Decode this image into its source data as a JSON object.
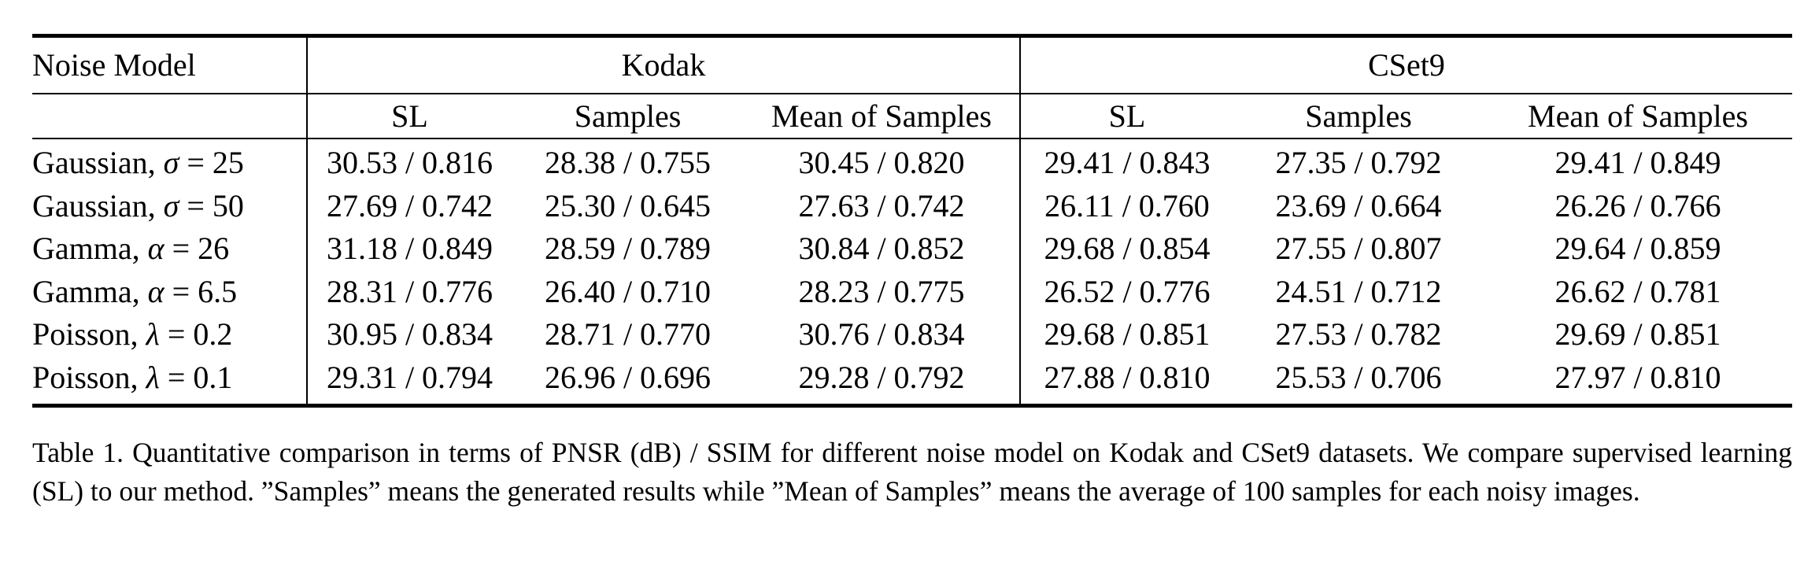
{
  "table": {
    "headers": {
      "row_label": "Noise Model",
      "groups": [
        "Kodak",
        "CSet9"
      ],
      "subcolumns": [
        "SL",
        "Samples",
        "Mean of Samples",
        "SL",
        "Samples",
        "Mean of Samples"
      ]
    },
    "rows": [
      {
        "model": "Gaussian, ",
        "param": "σ",
        "eq": " = 25",
        "cells": [
          "30.53 / 0.816",
          "28.38 / 0.755",
          "30.45 / 0.820",
          "29.41 / 0.843",
          "27.35 / 0.792",
          "29.41 / 0.849"
        ]
      },
      {
        "model": "Gaussian, ",
        "param": "σ",
        "eq": " = 50",
        "cells": [
          "27.69 / 0.742",
          "25.30 / 0.645",
          "27.63 / 0.742",
          "26.11 / 0.760",
          "23.69 / 0.664",
          "26.26 / 0.766"
        ]
      },
      {
        "model": "Gamma, ",
        "param": "α",
        "eq": " = 26",
        "cells": [
          "31.18 / 0.849",
          "28.59 / 0.789",
          "30.84 / 0.852",
          "29.68 / 0.854",
          "27.55 / 0.807",
          "29.64 / 0.859"
        ]
      },
      {
        "model": "Gamma, ",
        "param": "α",
        "eq": " = 6.5",
        "cells": [
          "28.31 / 0.776",
          "26.40 / 0.710",
          "28.23 / 0.775",
          "26.52 / 0.776",
          "24.51 / 0.712",
          "26.62 / 0.781"
        ]
      },
      {
        "model": "Poisson, ",
        "param": "λ",
        "eq": " = 0.2",
        "cells": [
          "30.95 / 0.834",
          "28.71 / 0.770",
          "30.76 / 0.834",
          "29.68 / 0.851",
          "27.53 / 0.782",
          "29.69 / 0.851"
        ]
      },
      {
        "model": "Poisson, ",
        "param": "λ",
        "eq": " = 0.1",
        "cells": [
          "29.31 / 0.794",
          "26.96 / 0.696",
          "29.28 / 0.792",
          "27.88 / 0.810",
          "25.53 / 0.706",
          "27.97 / 0.810"
        ]
      }
    ]
  },
  "caption": "Table 1.  Quantitative comparison in terms of PNSR (dB) / SSIM for different noise model on Kodak and CSet9 datasets.  We compare supervised learning (SL) to our method.  ”Samples” means the generated results while ”Mean of Samples” means the average of 100 samples for each noisy images."
}
